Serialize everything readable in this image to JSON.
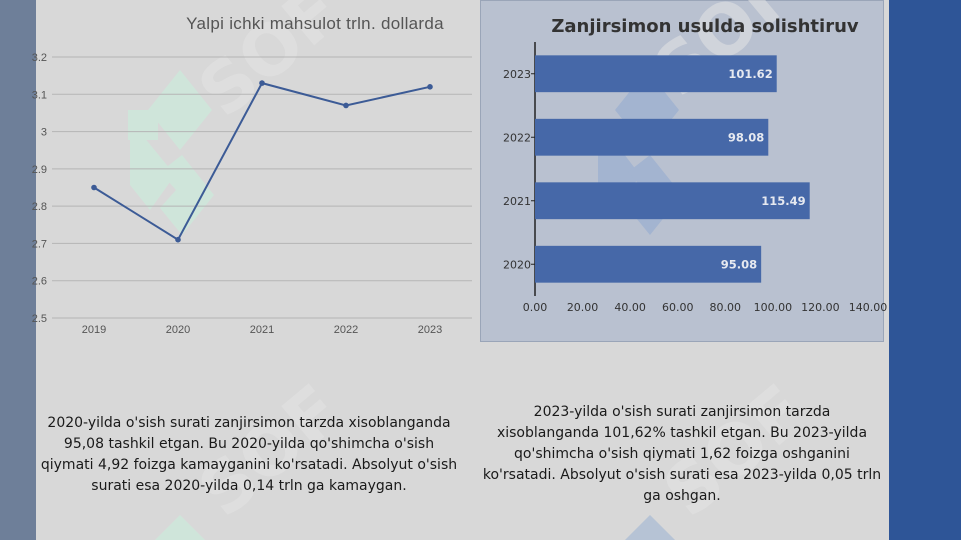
{
  "line_chart": {
    "title": "Yalpi ichki mahsulot trln. dollarda"
  },
  "bar_chart": {
    "title": "Zanjirsimon usulda solishtiruv"
  },
  "captions": {
    "left": "2020-yilda o'sish surati zanjirsimon tarzda xisoblanganda 95,08 tashkil etgan. Bu 2020-yilda qo'shimcha o'sish qiymati 4,92 foizga kamayganini ko'rsatadi. Absolyut o'sish surati esa 2020-yilda 0,14 trln ga kamaygan.",
    "right": "2023-yilda o'sish surati zanjirsimon tarzda xisoblanganda 101,62% tashkil etgan. Bu 2023-yilda qo'shimcha o'sish qiymati 1,62 foizga oshganini ko'rsatadi. Absolyut o'sish surati esa 2023-yilda 0,05 trln ga  oshgan."
  },
  "colors": {
    "line": "#3c5b96",
    "bar": "#4668a8",
    "bar_label": "#e6e9f0",
    "watermark_green": "#c8f0dc",
    "watermark_blue": "#7f9fd0",
    "left_band": "#6e7f99",
    "right_band": "#2e5597"
  },
  "chart_data": [
    {
      "type": "line",
      "title": "Yalpi ichki mahsulot trln. dollarda",
      "xlabel": "",
      "ylabel": "",
      "categories": [
        "2019",
        "2020",
        "2021",
        "2022",
        "2023"
      ],
      "series": [
        {
          "values": [
            2.85,
            2.71,
            3.13,
            3.07,
            3.12
          ]
        }
      ],
      "ylim": [
        2.5,
        3.2
      ],
      "yticks": [
        "2.5",
        "2.6",
        "2.7",
        "2.8",
        "2.9",
        "3",
        "3.1",
        "3.2"
      ],
      "grid": true,
      "legend": "none"
    },
    {
      "type": "bar",
      "orientation": "horizontal",
      "title": "Zanjirsimon usulda solishtiruv",
      "xlabel": "",
      "ylabel": "",
      "categories": [
        "2023",
        "2022",
        "2021",
        "2020"
      ],
      "values": [
        101.62,
        98.08,
        115.49,
        95.08
      ],
      "value_labels": [
        "101.62",
        "98.08",
        "115.49",
        "95.08"
      ],
      "xlim": [
        0,
        140
      ],
      "xticks": [
        "0.00",
        "20.00",
        "40.00",
        "60.00",
        "80.00",
        "100.00",
        "120.00",
        "140.00"
      ],
      "grid": false,
      "legend": "none"
    }
  ]
}
